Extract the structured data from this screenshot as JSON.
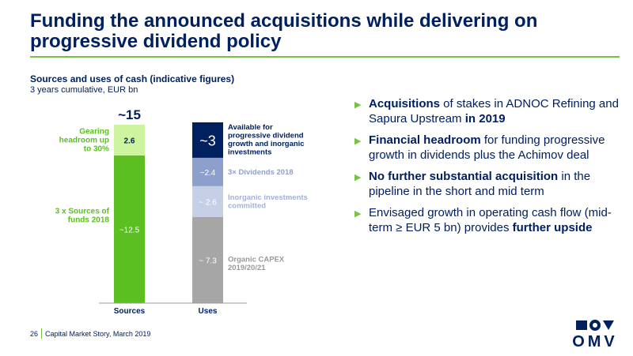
{
  "header": {
    "title": "Funding the announced acquisitions while delivering on progressive dividend policy",
    "subtitle": "Sources and uses of cash (indicative figures)",
    "subsubtitle": "3 years cumulative, EUR bn"
  },
  "chart_data": {
    "type": "bar",
    "stacked": true,
    "categories": [
      "Sources",
      "Uses"
    ],
    "total_label": "~15",
    "sources": [
      {
        "name": "3 x Sources of funds 2018",
        "value": 12.5,
        "label": "~12.5",
        "color": "#5bbf21"
      },
      {
        "name": "Gearing headroom up to 30%",
        "value": 2.6,
        "label": "2.6",
        "color": "#cdf49f"
      }
    ],
    "uses": [
      {
        "name": "Organic CAPEX 2019/20/21",
        "value": 7.3,
        "label": "~ 7.3",
        "color": "#a6a6a6"
      },
      {
        "name": "Inorganic investments committed",
        "value": 2.6,
        "label": "~ 2.6",
        "color": "#c5cfe6"
      },
      {
        "name": "3× Dividends 2018",
        "value": 2.4,
        "label": "~2.4",
        "color": "#8d9fcb"
      },
      {
        "name": "Available for progressive dividend growth and inorganic investments",
        "value": 3,
        "label": "~3",
        "color": "#002060"
      }
    ],
    "ylim": [
      0,
      15.1
    ]
  },
  "bullets": [
    {
      "parts": [
        {
          "t": "Acquisitions",
          "b": true
        },
        {
          "t": " of stakes in ADNOC Refining and Sapura Upstream ",
          "b": false
        },
        {
          "t": "in 2019",
          "b": true
        }
      ]
    },
    {
      "parts": [
        {
          "t": "Financial headroom",
          "b": true
        },
        {
          "t": " for funding progressive growth in dividends plus the Achimov deal",
          "b": false
        }
      ]
    },
    {
      "parts": [
        {
          "t": "No further substantial acquisition",
          "b": true
        },
        {
          "t": " in the pipeline in the short and mid term",
          "b": false
        }
      ]
    },
    {
      "parts": [
        {
          "t": "Envisaged growth in operating cash flow (mid-term ≥ EUR 5 bn) provides ",
          "b": false
        },
        {
          "t": "further upside",
          "b": true
        }
      ]
    }
  ],
  "footer": {
    "page": "26",
    "text": "Capital Market Story, March 2019"
  },
  "logo": {
    "word": "OMV"
  },
  "colors": {
    "navy": "#002060",
    "green": "#7ac143"
  }
}
